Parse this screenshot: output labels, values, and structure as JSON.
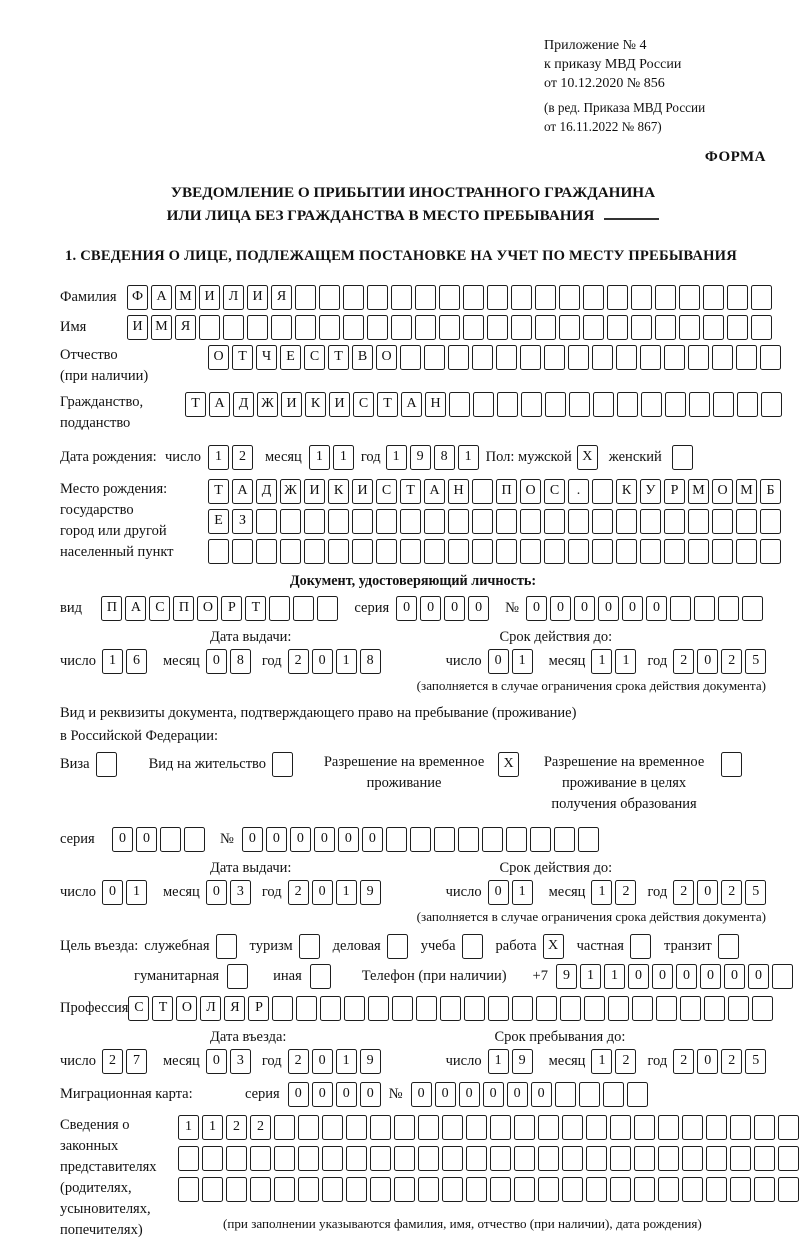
{
  "header": {
    "lines": [
      "Приложение № 4",
      "к приказу МВД России",
      "от 10.12.2020 № 856"
    ],
    "amendment_lines": [
      "(в ред. Приказа МВД России",
      "от 16.11.2022 № 867)"
    ],
    "form_label": "ФОРМА"
  },
  "title": {
    "line1": "УВЕДОМЛЕНИЕ О ПРИБЫТИИ ИНОСТРАННОГО ГРАЖДАНИНА",
    "line2": "ИЛИ ЛИЦА БЕЗ ГРАЖДАНСТВА В МЕСТО ПРЕБЫВАНИЯ"
  },
  "section1_heading": "1. СВЕДЕНИЯ О ЛИЦЕ, ПОДЛЕЖАЩЕМ ПОСТАНОВКЕ НА УЧЕТ ПО МЕСТУ ПРЕБЫВАНИЯ",
  "labels": {
    "day": "число",
    "month": "месяц",
    "year": "год",
    "issue_date": "Дата выдачи:",
    "valid_until": "Срок действия до:",
    "entry_date": "Дата въезда:",
    "stay_until": "Срок пребывания до:",
    "restriction_note": "(заполняется в случае ограничения срока действия документа)",
    "series": "серия",
    "number": "№"
  },
  "person": {
    "surname": {
      "label": "Фамилия",
      "value": "ФАМИЛИЯ"
    },
    "name": {
      "label": "Имя",
      "value": "ИМЯ"
    },
    "patronymic": {
      "label": "Отчество",
      "label2": "(при наличии)",
      "value": "ОТЧЕСТВО"
    },
    "citizenship": {
      "label": "Гражданство,",
      "label2": "подданство",
      "value": "ТАДЖИКИСТАН"
    },
    "birth": {
      "label": "Дата рождения:",
      "day": "12",
      "month": "11",
      "year": "1981",
      "sex_label": "Пол: мужской",
      "male_checked": true,
      "female_label": "женский",
      "female_checked": false
    },
    "birthplace": {
      "label_lines": [
        "Место рождения:",
        "государство",
        "город или другой",
        "населенный пункт"
      ],
      "row1": "ТАДЖИКИСТАН ПОС. КУРМОМБ",
      "row2": "ЕЗ",
      "row3": ""
    }
  },
  "id_document": {
    "heading": "Документ, удостоверяющий личность:",
    "type_label": "вид",
    "type": "ПАСПОРТ",
    "series": "0000",
    "number": "000000",
    "issue": {
      "day": "16",
      "month": "08",
      "year": "2018"
    },
    "valid": {
      "day": "01",
      "month": "11",
      "year": "2025"
    }
  },
  "residence_document": {
    "intro_line1": "Вид и реквизиты документа, подтверждающего право на пребывание (проживание)",
    "intro_line2": "в Российской Федерации:",
    "options": [
      {
        "label": "Виза",
        "checked": false
      },
      {
        "label": "Вид на жительство",
        "checked": false
      },
      {
        "label": "Разрешение на временное проживание",
        "checked": true
      },
      {
        "label": "Разрешение на временное проживание в целях получения образования",
        "checked": false
      }
    ],
    "series": "00",
    "number": "000000",
    "issue": {
      "day": "01",
      "month": "03",
      "year": "2019"
    },
    "valid": {
      "day": "01",
      "month": "12",
      "year": "2025"
    }
  },
  "entry_purpose": {
    "label": "Цель въезда:",
    "options_row1": [
      {
        "label": "служебная",
        "checked": false
      },
      {
        "label": "туризм",
        "checked": false
      },
      {
        "label": "деловая",
        "checked": false
      },
      {
        "label": "учеба",
        "checked": false
      },
      {
        "label": "работа",
        "checked": true
      },
      {
        "label": "частная",
        "checked": false
      },
      {
        "label": "транзит",
        "checked": false
      }
    ],
    "options_row2": [
      {
        "label": "гуманитарная",
        "checked": false
      },
      {
        "label": "иная",
        "checked": false
      }
    ]
  },
  "phone": {
    "label": "Телефон (при наличии)",
    "prefix": "+7",
    "value": "911000000"
  },
  "profession": {
    "label": "Профессия",
    "value": "СТОЛЯР"
  },
  "entry": {
    "date": {
      "day": "27",
      "month": "03",
      "year": "2019"
    },
    "stay": {
      "day": "19",
      "month": "12",
      "year": "2025"
    }
  },
  "migration_card": {
    "label": "Миграционная карта:",
    "series": "0000",
    "number": "000000"
  },
  "representatives": {
    "label_lines": [
      "Сведения о",
      "законных",
      "представителях",
      "(родителях,",
      "усыновителях,",
      "попечителях)"
    ],
    "row1": "1122",
    "row2": "",
    "row3": "",
    "note": "(при заполнении указываются фамилия, имя, отчество (при наличии), дата рождения)"
  }
}
